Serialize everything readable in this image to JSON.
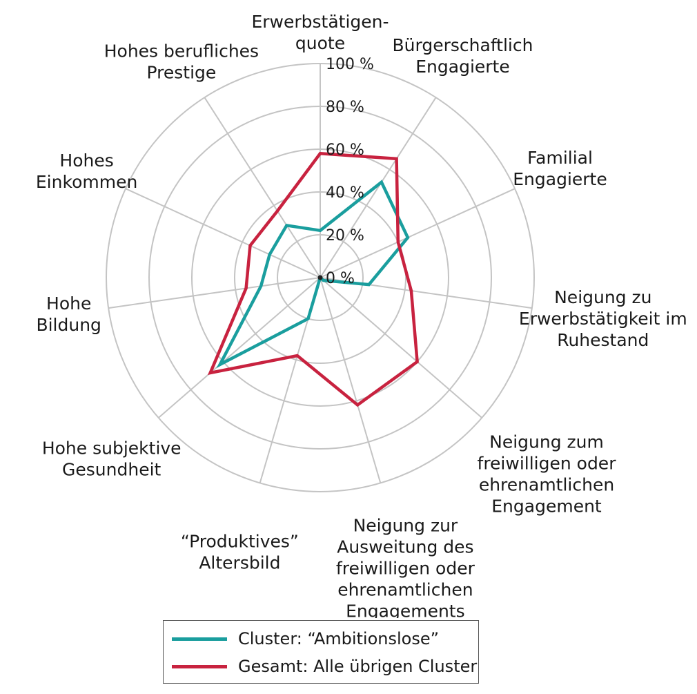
{
  "chart_data": {
    "type": "radar",
    "axes": [
      [
        "Erwerbstätigen-",
        "quote"
      ],
      [
        "Bürgerschaftlich",
        "Engagierte"
      ],
      [
        "Familial",
        "Engagierte"
      ],
      [
        "Neigung zu",
        "Erwerbstätigkeit im",
        "Ruhestand"
      ],
      [
        "Neigung zum",
        "freiwilligen oder",
        "ehrenamtlichen",
        "Engagement"
      ],
      [
        "Neigung zur",
        "Ausweitung des",
        "freiwilligen oder",
        "ehrenamtlichen",
        "Engagements"
      ],
      [
        "“Produktives”",
        "Altersbild"
      ],
      [
        "Hohe subjektive",
        "Gesundheit"
      ],
      [
        "Hohe",
        "Bildung"
      ],
      [
        "Hohes",
        "Einkommen"
      ],
      [
        "Hohes berufliches",
        "Prestige"
      ]
    ],
    "ticks": [
      "0 %",
      "20 %",
      "40 %",
      "60 %",
      "80 %",
      "100 %"
    ],
    "tick_values": [
      0,
      20,
      40,
      60,
      80,
      100
    ],
    "range": [
      0,
      100
    ],
    "grid": true,
    "legend_position": "bottom",
    "series": [
      {
        "name": "Cluster: “Ambitionslose”",
        "color": "#1a9e9e",
        "values": [
          22,
          53,
          45,
          23,
          2,
          0,
          20,
          62,
          28,
          26,
          29
        ]
      },
      {
        "name": "Gesamt: Alle übrigen Cluster",
        "color": "#c8223f",
        "values": [
          58,
          66,
          40,
          43,
          60,
          62,
          38,
          68,
          35,
          36,
          37
        ]
      }
    ]
  }
}
